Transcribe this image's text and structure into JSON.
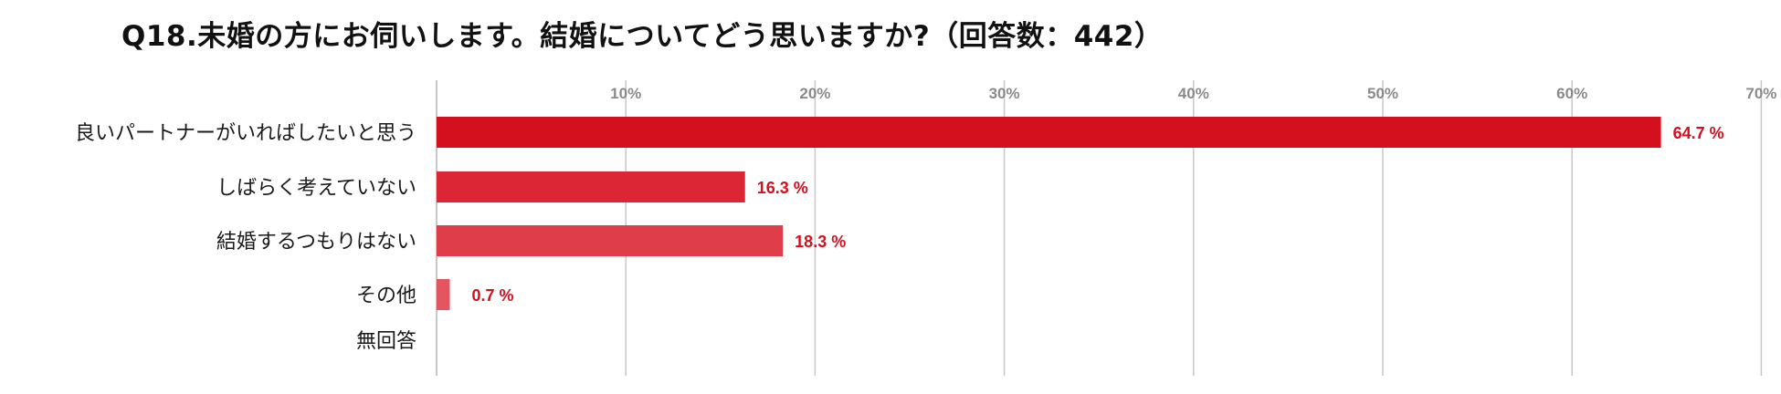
{
  "title": "Q18.未婚の方にお伺いします。結婚についてどう思いますか?（回答数：442）",
  "chart_data": {
    "type": "bar",
    "orientation": "horizontal",
    "title": "Q18.未婚の方にお伺いします。結婚についてどう思いますか?（回答数：442）",
    "xlabel": "",
    "ylabel": "",
    "xlim": [
      0,
      70
    ],
    "ticks": [
      10,
      20,
      30,
      40,
      50,
      60,
      70
    ],
    "tick_labels": [
      "10%",
      "20%",
      "30%",
      "40%",
      "50%",
      "60%",
      "70%"
    ],
    "grid": true,
    "categories": [
      "良いパートナーがいればしたいと思う",
      "しばらく考えていない",
      "結婚するつもりはない",
      "その他",
      "無回答"
    ],
    "values": [
      64.7,
      16.3,
      18.3,
      0.7,
      0
    ],
    "value_labels": [
      "64.7 %",
      "16.3 %",
      "18.3 %",
      "0.7 %",
      ""
    ],
    "colors": [
      "#d40f1e",
      "#dc2535",
      "#e03d4a",
      "#e45561",
      "#e45561"
    ],
    "label_color": "#d40f1e",
    "grid_color": "#c8c8c8"
  }
}
